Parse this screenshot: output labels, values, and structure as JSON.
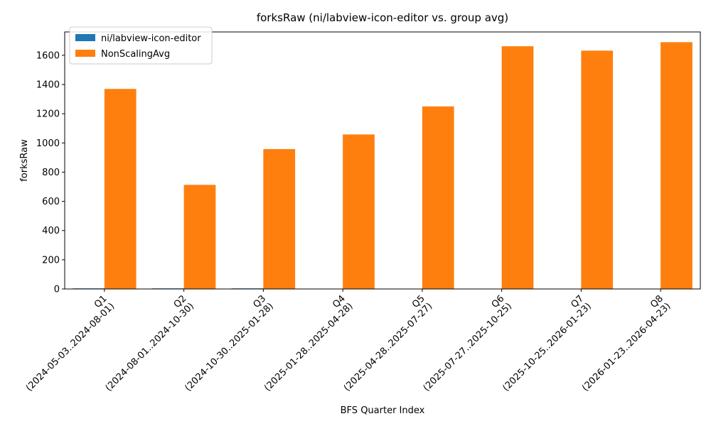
{
  "chart_data": {
    "type": "bar",
    "title": "forksRaw (ni/labview-icon-editor vs. group avg)",
    "xlabel": "BFS Quarter Index",
    "ylabel": "forksRaw",
    "ylim": [
      0,
      1760
    ],
    "yticks": [
      0,
      200,
      400,
      600,
      800,
      1000,
      1200,
      1400,
      1600
    ],
    "categories": [
      {
        "q": "Q1",
        "range": "(2024-05-03..2024-08-01)"
      },
      {
        "q": "Q2",
        "range": "(2024-08-01..2024-10-30)"
      },
      {
        "q": "Q3",
        "range": "(2024-10-30..2025-01-28)"
      },
      {
        "q": "Q4",
        "range": "(2025-01-28..2025-04-28)"
      },
      {
        "q": "Q5",
        "range": "(2025-04-28..2025-07-27)"
      },
      {
        "q": "Q6",
        "range": "(2025-07-27..2025-10-25)"
      },
      {
        "q": "Q7",
        "range": "(2025-10-25..2026-01-23)"
      },
      {
        "q": "Q8",
        "range": "(2026-01-23..2026-04-23)"
      }
    ],
    "series": [
      {
        "name": "ni/labview-icon-editor",
        "color": "#1f77b4",
        "values": [
          4,
          4,
          4,
          0,
          0,
          0,
          0,
          0
        ]
      },
      {
        "name": "NonScalingAvg",
        "color": "#ff7f0e",
        "values": [
          1370,
          713,
          958,
          1058,
          1250,
          1662,
          1632,
          1690
        ]
      }
    ],
    "legend_position": "top-left",
    "grid": false
  }
}
